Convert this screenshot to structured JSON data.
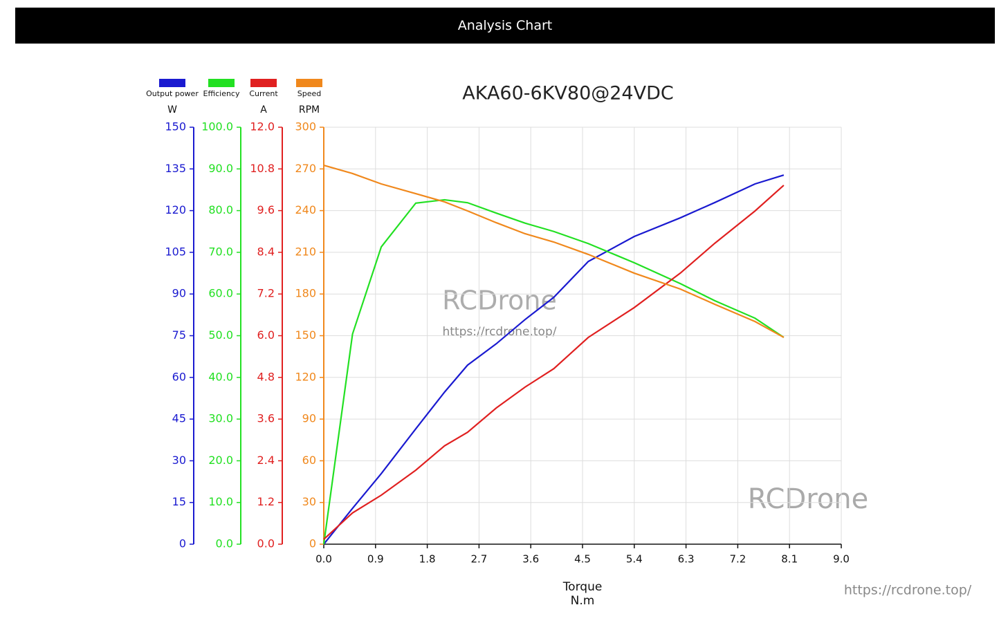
{
  "header": {
    "title": "Analysis Chart"
  },
  "chart_data": {
    "type": "line",
    "title": "AKA60-6KV80@24VDC",
    "xlabel": "Torque",
    "xunit": "N.m",
    "x": [
      0,
      0.5,
      1.0,
      1.6,
      2.1,
      2.5,
      3.0,
      3.5,
      4.0,
      4.6,
      5.4,
      6.2,
      6.8,
      7.5,
      8.0
    ],
    "xlim": [
      0,
      9
    ],
    "xticks": [
      {
        "value": 0,
        "label": "0.0"
      },
      0.9,
      1.8,
      2.7,
      3.6,
      4.5,
      5.4,
      6.3,
      7.2,
      8.1,
      {
        "value": 9,
        "label": "9.0"
      }
    ],
    "grid": true,
    "ylabel": "W",
    "ylim": [
      0,
      150
    ],
    "yticks": [
      0,
      15,
      30,
      45,
      60,
      75,
      90,
      105,
      120,
      135,
      150
    ],
    "y2lim": [
      0,
      100
    ],
    "y2ticks": [
      {
        "value": 0,
        "label": "0.0"
      },
      {
        "value": 10,
        "label": "10.0"
      },
      {
        "value": 20,
        "label": "20.0"
      },
      {
        "value": 30,
        "label": "30.0"
      },
      {
        "value": 40,
        "label": "40.0"
      },
      {
        "value": 50,
        "label": "50.0"
      },
      {
        "value": 60,
        "label": "60.0"
      },
      {
        "value": 70,
        "label": "70.0"
      },
      {
        "value": 80,
        "label": "80.0"
      },
      {
        "value": 90,
        "label": "90.0"
      },
      {
        "value": 100,
        "label": "100.0"
      }
    ],
    "y3label": "A",
    "y3lim": [
      0,
      12
    ],
    "y3ticks": [
      {
        "value": 0,
        "label": "0.0"
      },
      1.2,
      2.4,
      3.6,
      4.8,
      {
        "value": 6,
        "label": "6.0"
      },
      7.2,
      8.4,
      9.6,
      10.8,
      {
        "value": 12,
        "label": "12.0"
      }
    ],
    "y4label": "RPM",
    "y4lim": [
      0,
      300
    ],
    "y4ticks": [
      0,
      30,
      60,
      90,
      120,
      150,
      180,
      210,
      240,
      270,
      300
    ],
    "series": [
      {
        "name": "Output power",
        "color": "#1a1ad0",
        "axis": "y",
        "values": [
          0,
          12.9,
          25.4,
          41.5,
          54.7,
          64.4,
          72.1,
          80.8,
          88.8,
          101.7,
          110.7,
          117.4,
          122.9,
          129.6,
          132.8
        ]
      },
      {
        "name": "Efficiency",
        "color": "#22e022",
        "axis": "y2",
        "values": [
          0,
          50.4,
          71.3,
          81.8,
          82.6,
          81.9,
          79.4,
          77.0,
          75.0,
          72.1,
          67.5,
          62.5,
          58.4,
          54.2,
          49.6
        ]
      },
      {
        "name": "Current",
        "color": "#e02020",
        "axis": "y3",
        "values": [
          0.14,
          0.9,
          1.41,
          2.13,
          2.83,
          3.22,
          3.92,
          4.52,
          5.05,
          5.95,
          6.81,
          7.8,
          8.66,
          9.59,
          10.33
        ]
      },
      {
        "name": "Speed",
        "color": "#f0881c",
        "axis": "y4",
        "values": [
          272.6,
          266.7,
          259.2,
          252.2,
          246.3,
          239.8,
          231.3,
          223.4,
          217.4,
          208.5,
          195.0,
          183.6,
          172.6,
          160.2,
          148.8
        ]
      }
    ],
    "watermarks": [
      "RCDrone",
      "https://rcdrone.top/",
      "RCDrone",
      "https://rcdrone.top/"
    ]
  }
}
